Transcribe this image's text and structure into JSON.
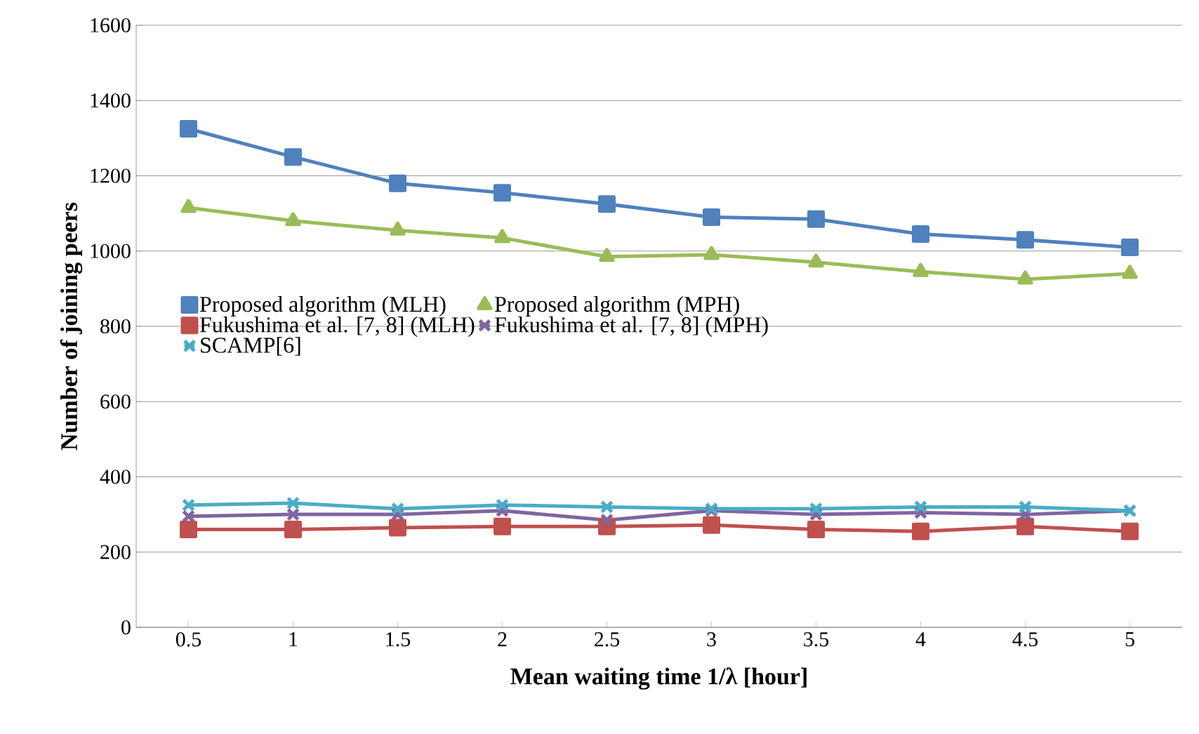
{
  "chart_data": {
    "type": "line",
    "xlabel": "Mean waiting time 1/λ [hour]",
    "ylabel": "Number of joining peers",
    "categories": [
      "0.5",
      "1",
      "1.5",
      "2",
      "2.5",
      "3",
      "3.5",
      "4",
      "4.5",
      "5"
    ],
    "series": [
      {
        "name": "Proposed algorithm (MLH)",
        "color": "#4f81bd",
        "marker": "square",
        "values": [
          1325,
          1250,
          1180,
          1155,
          1125,
          1090,
          1085,
          1045,
          1030,
          1010
        ]
      },
      {
        "name": "Proposed algorithm (MPH)",
        "color": "#9bbb59",
        "marker": "triangle",
        "values": [
          1115,
          1080,
          1055,
          1035,
          985,
          990,
          970,
          945,
          925,
          940
        ]
      },
      {
        "name": "Fukushima et al. [7, 8] (MLH)",
        "color": "#c0504d",
        "marker": "square",
        "values": [
          260,
          260,
          265,
          268,
          268,
          272,
          260,
          255,
          268,
          255
        ]
      },
      {
        "name": "Fukushima et al. [7, 8] (MPH)",
        "color": "#8064a2",
        "marker": "cross",
        "values": [
          295,
          300,
          300,
          310,
          285,
          310,
          300,
          305,
          300,
          310
        ]
      },
      {
        "name": "SCAMP[6]",
        "color": "#4bacc6",
        "marker": "cross",
        "values": [
          325,
          330,
          315,
          325,
          320,
          315,
          315,
          320,
          320,
          310
        ]
      }
    ],
    "ylim": [
      0,
      1600
    ],
    "yticks": [
      0,
      200,
      400,
      600,
      800,
      1000,
      1200,
      1400,
      1600
    ],
    "grid": "y",
    "legend": "left",
    "line_style": "solid"
  }
}
